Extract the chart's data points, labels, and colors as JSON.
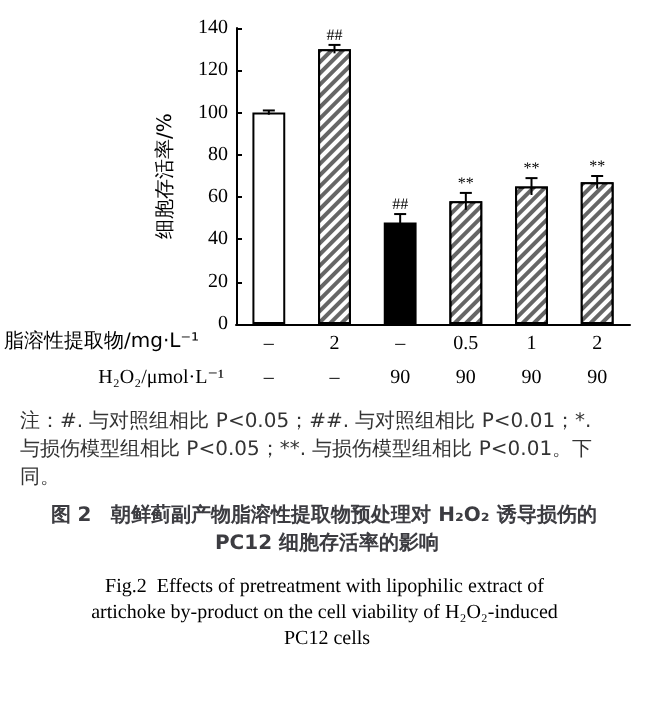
{
  "chart_data": {
    "type": "bar",
    "title": "图 2　朝鲜蓟副产物脂溶性提取物预处理对 H₂O₂ 诱导损伤的 PC12 细胞存活率的影响",
    "subtitle": "Fig.2  Effects of pretreatment with lipophilic extract of artichoke by-product on the cell viability of H₂O₂-induced PC12 cells",
    "xlabel": "脂溶性提取物/mg·L⁻¹",
    "ylabel": "细胞存活率/%",
    "categories": [
      "–",
      "2",
      "–",
      "0.5",
      "1",
      "2"
    ],
    "values": [
      100,
      130,
      48,
      58,
      65,
      67
    ],
    "errors": [
      1,
      2,
      4,
      4,
      4,
      3
    ],
    "value_labels": [
      null,
      "##",
      "##",
      "**",
      "**",
      "**"
    ],
    "colors": [
      "#ffffff",
      "#666666",
      "#000000",
      "#666666",
      "#666666",
      "#666666"
    ],
    "ylim": [
      0,
      140
    ],
    "yticks": [
      0,
      20,
      40,
      60,
      80,
      100,
      120,
      140
    ],
    "grid": false,
    "annotations": [
      "H₂O₂/μmol·L⁻¹",
      "–",
      "–",
      "90",
      "90",
      "90",
      "90",
      "注：#. 与对照组相比 P<0.05；##. 与对照组相比 P<0.01；*. 与损伤模型组相比 P<0.05；**. 与损伤模型组相比 P<0.01。下同。"
    ]
  }
}
